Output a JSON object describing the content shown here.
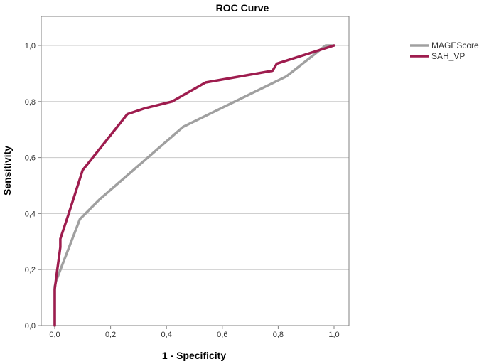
{
  "chart_data": {
    "type": "line",
    "title": "ROC Curve",
    "xlabel": "1 - Specificity",
    "ylabel": "Sensitivity",
    "xlim": [
      0,
      1
    ],
    "ylim": [
      0,
      1.1
    ],
    "xticks": [
      0.0,
      0.2,
      0.4,
      0.6,
      0.8,
      1.0
    ],
    "xtick_labels": [
      "0,0",
      "0,2",
      "0,4",
      "0,6",
      "0,8",
      "1,0"
    ],
    "yticks": [
      0.0,
      0.2,
      0.4,
      0.6,
      0.8,
      1.0
    ],
    "ytick_labels": [
      "0,0",
      "0,2",
      "0,4",
      "0,6",
      "0,8",
      "1,0"
    ],
    "grid": "horizontal",
    "legend_position": "top-right",
    "series": [
      {
        "name": "MAGEScore",
        "color": "#a0a0a0",
        "x": [
          0.0,
          0.0,
          0.005,
          0.09,
          0.16,
          0.46,
          0.83,
          0.97,
          1.0
        ],
        "y": [
          0.0,
          0.14,
          0.16,
          0.38,
          0.45,
          0.71,
          0.89,
          1.0,
          1.0
        ]
      },
      {
        "name": "SAH_VP",
        "color": "#9e1c4e",
        "x": [
          0.0,
          0.0,
          0.005,
          0.02,
          0.02,
          0.05,
          0.1,
          0.26,
          0.32,
          0.42,
          0.54,
          0.78,
          0.795,
          1.0
        ],
        "y": [
          0.0,
          0.13,
          0.17,
          0.28,
          0.31,
          0.4,
          0.555,
          0.755,
          0.775,
          0.8,
          0.868,
          0.91,
          0.935,
          1.0
        ]
      }
    ]
  }
}
